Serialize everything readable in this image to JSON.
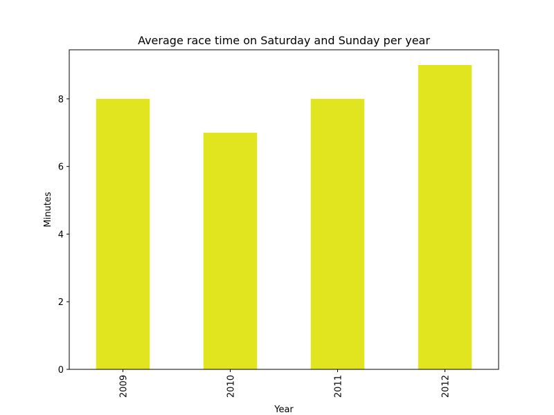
{
  "chart_data": {
    "type": "bar",
    "title": "Average race time on Saturday and Sunday per year",
    "xlabel": "Year",
    "ylabel": "Minutes",
    "categories": [
      "2009",
      "2010",
      "2011",
      "2012"
    ],
    "values": [
      8,
      7,
      8,
      9
    ],
    "ylim": [
      0,
      9.45
    ],
    "yticks": [
      "0",
      "2",
      "4",
      "6",
      "8"
    ],
    "bar_color": "#e1e51f",
    "grid": false,
    "legend": "none",
    "xtick_rotation": "vertical"
  }
}
